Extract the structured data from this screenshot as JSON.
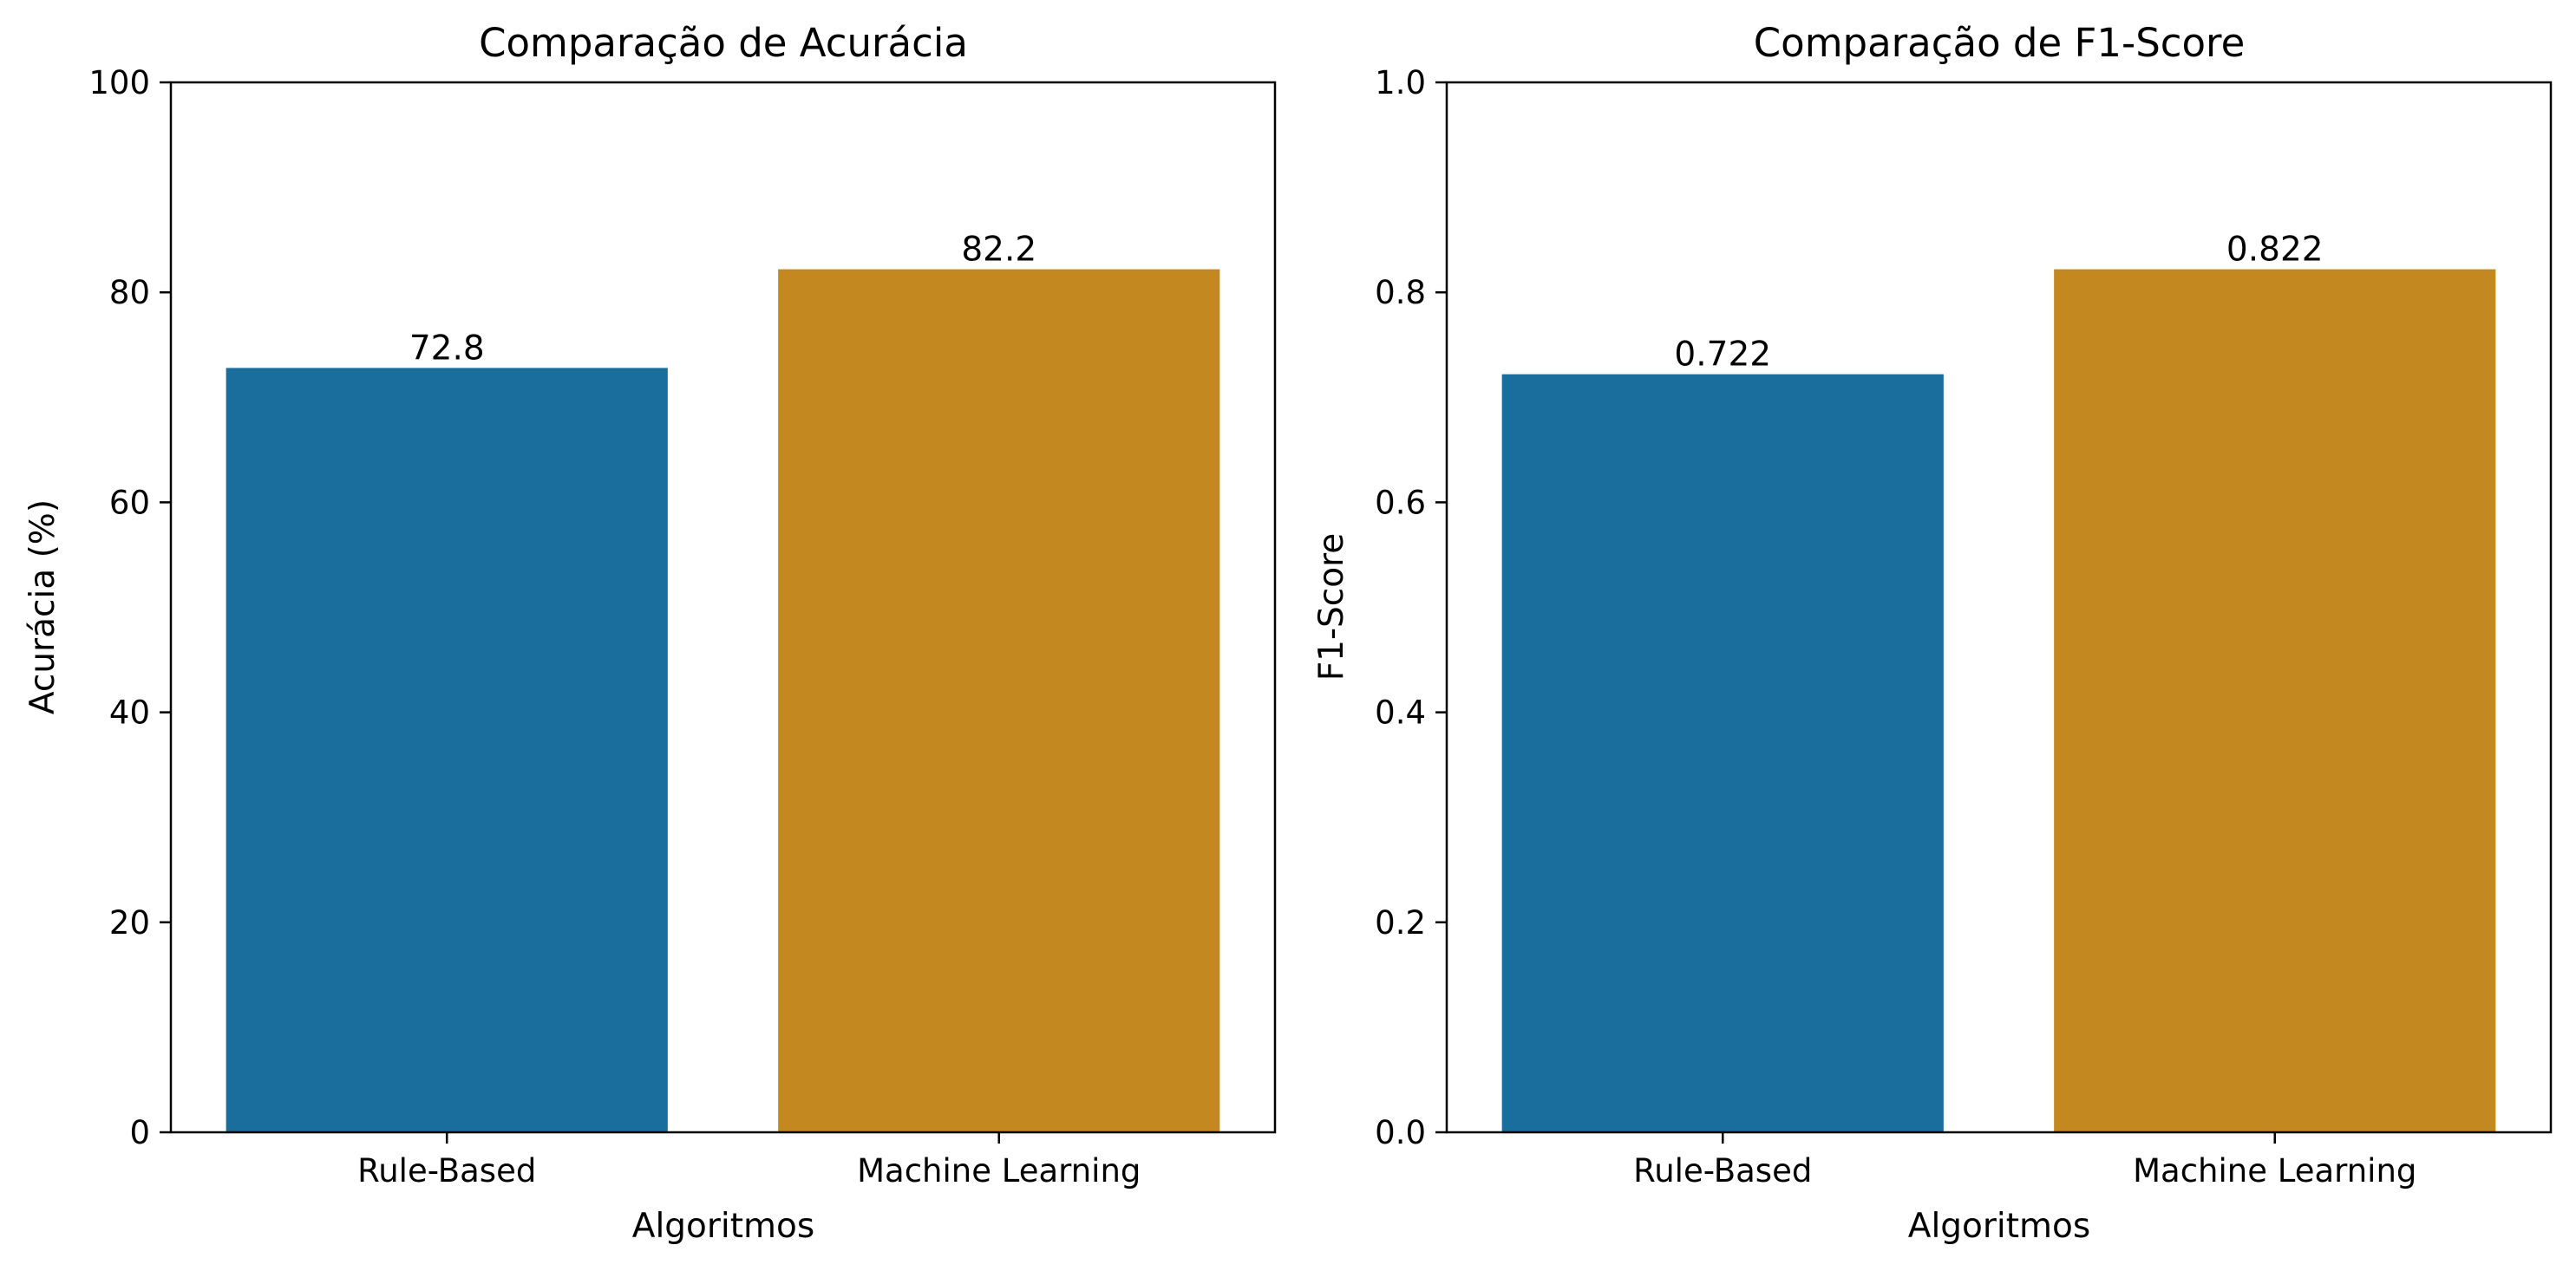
{
  "chart_data": [
    {
      "type": "bar",
      "title": "Comparação de Acurácia",
      "xlabel": "Algoritmos",
      "ylabel": "Acurácia (%)",
      "categories": [
        "Rule-Based",
        "Machine Learning"
      ],
      "values": [
        72.8,
        82.2
      ],
      "data_labels": [
        "72.8",
        "82.2"
      ],
      "colors": [
        "#1a6e9e",
        "#c48820"
      ],
      "ylim": [
        0,
        100
      ],
      "yticks": [
        0,
        20,
        40,
        60,
        80,
        100
      ],
      "ytick_labels": [
        "0",
        "20",
        "40",
        "60",
        "80",
        "100"
      ],
      "grid": false,
      "legend": "none"
    },
    {
      "type": "bar",
      "title": "Comparação de F1-Score",
      "xlabel": "Algoritmos",
      "ylabel": "F1-Score",
      "categories": [
        "Rule-Based",
        "Machine Learning"
      ],
      "values": [
        0.722,
        0.822
      ],
      "data_labels": [
        "0.722",
        "0.822"
      ],
      "colors": [
        "#1a6e9e",
        "#c48820"
      ],
      "ylim": [
        0,
        1
      ],
      "yticks": [
        0,
        0.2,
        0.4,
        0.6,
        0.8,
        1.0
      ],
      "ytick_labels": [
        "0.0",
        "0.2",
        "0.4",
        "0.6",
        "0.8",
        "1.0"
      ],
      "grid": false,
      "legend": "none"
    }
  ]
}
